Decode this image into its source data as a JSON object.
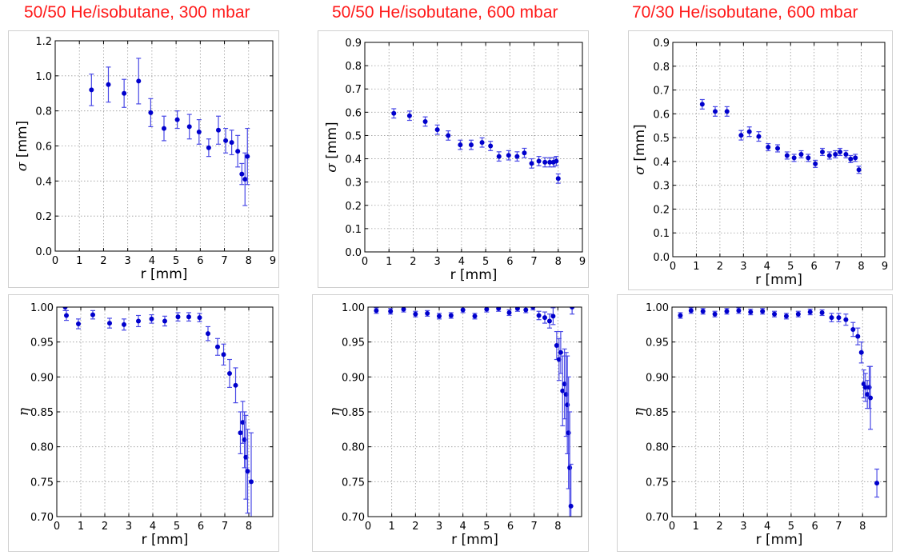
{
  "column_titles": [
    "50/50 He/isobutane, 300 mbar",
    "50/50 He/isobutane, 600 mbar",
    "70/30 He/isobutane, 600 mbar"
  ],
  "colors": {
    "title": "#ff1a1a",
    "marker": "#0000cc",
    "errorbar": "#4a4ae6",
    "grid": "#9a9a9a"
  },
  "chart_data": [
    {
      "id": "sigma-300",
      "type": "scatter",
      "xlabel": "r [mm]",
      "ylabel_symbol": "σ",
      "ylabel_unit": " [mm]",
      "xlim": [
        0,
        9
      ],
      "ylim": [
        0,
        1.2
      ],
      "xticks": [
        "0",
        "1",
        "2",
        "3",
        "4",
        "5",
        "6",
        "7",
        "8",
        "9"
      ],
      "yticks": [
        "0.0",
        "0.2",
        "0.4",
        "0.6",
        "0.8",
        "1.0",
        "1.2"
      ],
      "grid": true,
      "x": [
        1.5,
        2.2,
        2.85,
        3.45,
        3.95,
        4.5,
        5.05,
        5.55,
        5.95,
        6.35,
        6.75,
        7.05,
        7.3,
        7.55,
        7.72,
        7.85,
        7.95
      ],
      "y": [
        0.92,
        0.95,
        0.9,
        0.97,
        0.79,
        0.7,
        0.75,
        0.71,
        0.68,
        0.59,
        0.69,
        0.63,
        0.62,
        0.57,
        0.44,
        0.41,
        0.54
      ],
      "err": [
        0.09,
        0.1,
        0.08,
        0.13,
        0.08,
        0.07,
        0.05,
        0.07,
        0.07,
        0.05,
        0.08,
        0.07,
        0.07,
        0.09,
        0.06,
        0.15,
        0.16
      ]
    },
    {
      "id": "sigma-600",
      "type": "scatter",
      "xlabel": "r [mm]",
      "ylabel_symbol": "σ",
      "ylabel_unit": " [mm]",
      "xlim": [
        0,
        9
      ],
      "ylim": [
        0,
        0.9
      ],
      "xticks": [
        "0",
        "1",
        "2",
        "3",
        "4",
        "5",
        "6",
        "7",
        "8",
        "9"
      ],
      "yticks": [
        "0.0",
        "0.1",
        "0.2",
        "0.3",
        "0.4",
        "0.5",
        "0.6",
        "0.7",
        "0.8",
        "0.9"
      ],
      "grid": true,
      "x": [
        1.2,
        1.85,
        2.5,
        3.0,
        3.45,
        3.95,
        4.4,
        4.85,
        5.2,
        5.55,
        5.95,
        6.3,
        6.6,
        6.9,
        7.2,
        7.45,
        7.65,
        7.8,
        7.92,
        8.0
      ],
      "y": [
        0.595,
        0.585,
        0.56,
        0.525,
        0.5,
        0.46,
        0.46,
        0.47,
        0.455,
        0.41,
        0.415,
        0.41,
        0.425,
        0.38,
        0.39,
        0.385,
        0.385,
        0.385,
        0.39,
        0.315
      ],
      "err": [
        0.02,
        0.02,
        0.02,
        0.02,
        0.02,
        0.02,
        0.02,
        0.02,
        0.02,
        0.02,
        0.02,
        0.02,
        0.02,
        0.02,
        0.02,
        0.02,
        0.02,
        0.02,
        0.02,
        0.02
      ]
    },
    {
      "id": "sigma-600-7030",
      "type": "scatter",
      "xlabel": "r [mm]",
      "ylabel_symbol": "σ",
      "ylabel_unit": " [mm]",
      "xlim": [
        0,
        9
      ],
      "ylim": [
        0,
        0.9
      ],
      "xticks": [
        "0",
        "1",
        "2",
        "3",
        "4",
        "5",
        "6",
        "7",
        "8",
        "9"
      ],
      "yticks": [
        "0.0",
        "0.1",
        "0.2",
        "0.3",
        "0.4",
        "0.5",
        "0.6",
        "0.7",
        "0.8",
        "0.9"
      ],
      "grid": true,
      "x": [
        1.25,
        1.8,
        2.3,
        2.9,
        3.25,
        3.65,
        4.05,
        4.45,
        4.85,
        5.15,
        5.45,
        5.75,
        6.05,
        6.35,
        6.65,
        6.9,
        7.1,
        7.35,
        7.55,
        7.75,
        7.9
      ],
      "y": [
        0.64,
        0.61,
        0.61,
        0.51,
        0.525,
        0.505,
        0.46,
        0.455,
        0.425,
        0.415,
        0.43,
        0.415,
        0.39,
        0.44,
        0.425,
        0.43,
        0.44,
        0.43,
        0.41,
        0.415,
        0.365
      ],
      "err": [
        0.02,
        0.02,
        0.02,
        0.02,
        0.02,
        0.02,
        0.015,
        0.015,
        0.015,
        0.015,
        0.015,
        0.015,
        0.015,
        0.015,
        0.015,
        0.015,
        0.015,
        0.015,
        0.015,
        0.015,
        0.015
      ]
    },
    {
      "id": "eta-300",
      "type": "scatter",
      "xlabel": "r [mm]",
      "ylabel_symbol": "η",
      "ylabel_unit": "",
      "xlim": [
        0,
        9
      ],
      "ylim": [
        0.7,
        1.0
      ],
      "xticks": [
        "0",
        "1",
        "2",
        "3",
        "4",
        "5",
        "6",
        "7",
        "8"
      ],
      "yticks": [
        "0.70",
        "0.75",
        "0.80",
        "0.85",
        "0.90",
        "0.95",
        "1.00"
      ],
      "grid": true,
      "x": [
        0.35,
        0.4,
        0.9,
        1.5,
        2.2,
        2.8,
        3.4,
        3.95,
        4.5,
        5.05,
        5.5,
        5.95,
        6.3,
        6.7,
        6.95,
        7.2,
        7.45,
        7.65,
        7.75,
        7.82,
        7.88,
        7.95,
        8.1
      ],
      "y": [
        1.0,
        0.988,
        0.976,
        0.989,
        0.977,
        0.975,
        0.98,
        0.983,
        0.98,
        0.986,
        0.986,
        0.985,
        0.962,
        0.943,
        0.932,
        0.905,
        0.888,
        0.82,
        0.835,
        0.81,
        0.785,
        0.765,
        0.75
      ],
      "err": [
        0.005,
        0.007,
        0.007,
        0.006,
        0.007,
        0.008,
        0.008,
        0.006,
        0.007,
        0.006,
        0.006,
        0.006,
        0.01,
        0.012,
        0.015,
        0.02,
        0.025,
        0.03,
        0.03,
        0.04,
        0.06,
        0.06,
        0.07
      ]
    },
    {
      "id": "eta-600",
      "type": "scatter",
      "xlabel": "r [mm]",
      "ylabel_symbol": "η",
      "ylabel_unit": "",
      "xlim": [
        0,
        9
      ],
      "ylim": [
        0.7,
        1.0
      ],
      "xticks": [
        "0",
        "1",
        "2",
        "3",
        "4",
        "5",
        "6",
        "7",
        "8"
      ],
      "yticks": [
        "0.70",
        "0.75",
        "0.80",
        "0.85",
        "0.90",
        "0.95",
        "1.00"
      ],
      "grid": true,
      "x": [
        0.35,
        0.95,
        1.5,
        2.0,
        2.5,
        3.0,
        3.5,
        4.0,
        4.5,
        5.0,
        5.5,
        5.95,
        6.3,
        6.65,
        6.95,
        7.2,
        7.45,
        7.65,
        7.8,
        7.95,
        8.05,
        8.12,
        8.2,
        8.28,
        8.35,
        8.4,
        8.45,
        8.5,
        8.55,
        8.6
      ],
      "y": [
        0.995,
        0.994,
        0.997,
        0.99,
        0.991,
        0.987,
        0.988,
        0.996,
        0.987,
        0.997,
        0.998,
        0.992,
        0.998,
        0.996,
        1.0,
        0.988,
        0.985,
        0.98,
        0.987,
        0.945,
        0.925,
        0.935,
        0.88,
        0.89,
        0.875,
        0.86,
        0.82,
        0.77,
        0.715,
        1.0
      ],
      "err": [
        0.004,
        0.004,
        0.004,
        0.004,
        0.004,
        0.004,
        0.004,
        0.004,
        0.004,
        0.004,
        0.004,
        0.004,
        0.004,
        0.004,
        0.004,
        0.006,
        0.008,
        0.01,
        0.012,
        0.02,
        0.03,
        0.03,
        0.05,
        0.05,
        0.06,
        0.07,
        0.08,
        0.08,
        0.06,
        0.01
      ]
    },
    {
      "id": "eta-600-7030",
      "type": "scatter",
      "xlabel": "r [mm]",
      "ylabel_symbol": "η",
      "ylabel_unit": "",
      "xlim": [
        0,
        9
      ],
      "ylim": [
        0.7,
        1.0
      ],
      "xticks": [
        "0",
        "1",
        "2",
        "3",
        "4",
        "5",
        "6",
        "7",
        "8"
      ],
      "yticks": [
        "0.70",
        "0.75",
        "0.80",
        "0.85",
        "0.90",
        "0.95",
        "1.00"
      ],
      "grid": true,
      "x": [
        0.35,
        0.8,
        1.3,
        1.8,
        2.3,
        2.8,
        3.3,
        3.8,
        4.3,
        4.8,
        5.3,
        5.8,
        6.3,
        6.7,
        7.0,
        7.3,
        7.6,
        7.8,
        7.95,
        8.05,
        8.12,
        8.2,
        8.28,
        8.33,
        8.6
      ],
      "y": [
        0.988,
        0.995,
        0.994,
        0.99,
        0.994,
        0.995,
        0.993,
        0.994,
        0.99,
        0.987,
        0.99,
        0.993,
        0.992,
        0.985,
        0.985,
        0.982,
        0.968,
        0.958,
        0.935,
        0.89,
        0.885,
        0.875,
        0.885,
        0.87,
        0.748
      ],
      "err": [
        0.004,
        0.004,
        0.004,
        0.004,
        0.004,
        0.004,
        0.004,
        0.004,
        0.004,
        0.004,
        0.004,
        0.004,
        0.004,
        0.006,
        0.006,
        0.008,
        0.01,
        0.012,
        0.015,
        0.02,
        0.02,
        0.02,
        0.03,
        0.045,
        0.02
      ]
    }
  ]
}
